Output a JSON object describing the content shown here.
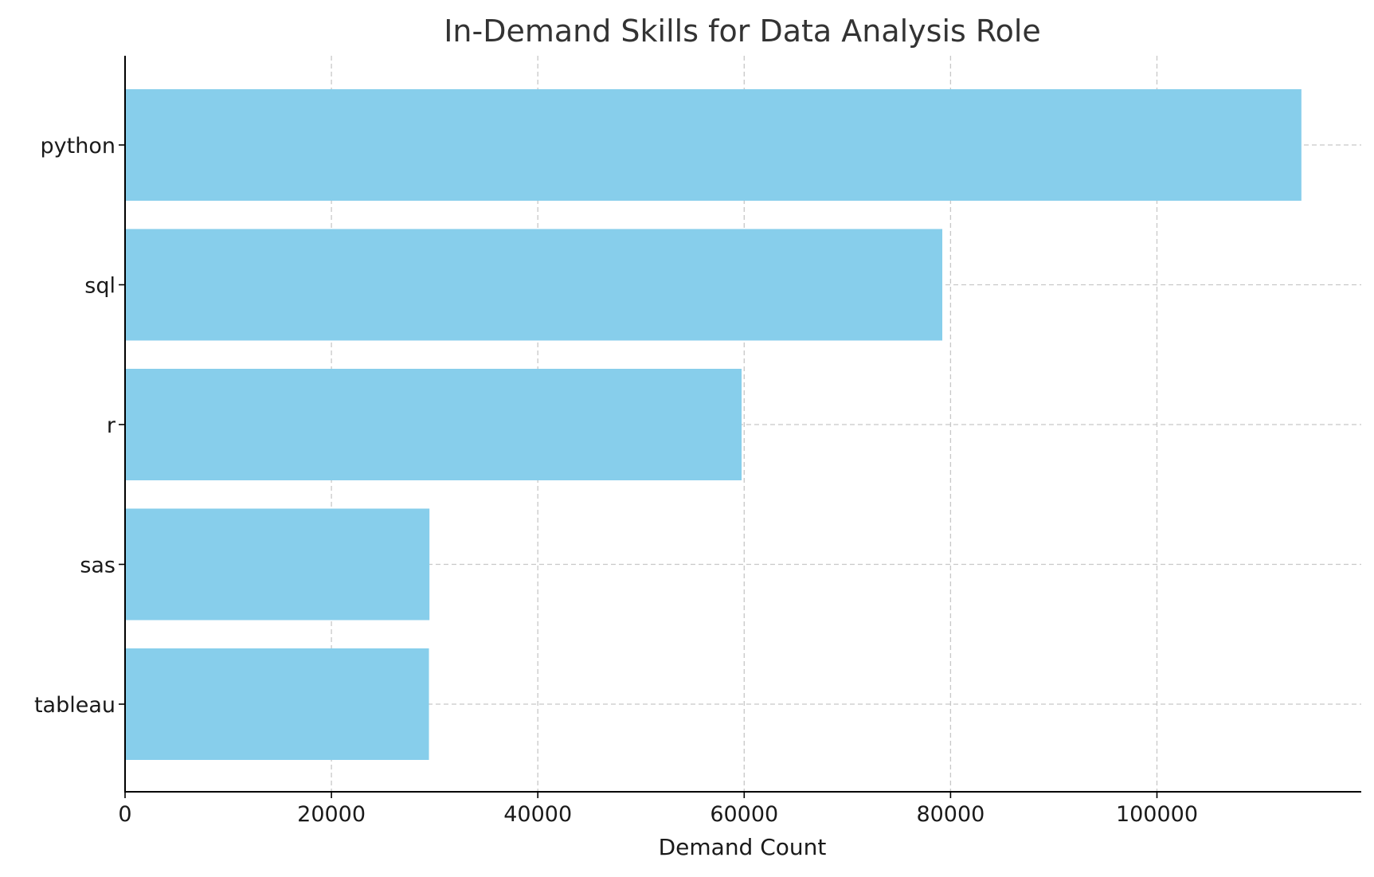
{
  "chart_data": {
    "type": "bar",
    "orientation": "horizontal",
    "title": "In-Demand Skills for Data Analysis Role",
    "xlabel": "Demand Count",
    "ylabel": "",
    "categories": [
      "python",
      "sql",
      "r",
      "sas",
      "tableau"
    ],
    "values": [
      114000,
      79200,
      59750,
      29500,
      29450
    ],
    "xlim": [
      0,
      119800
    ],
    "xticks": [
      0,
      20000,
      40000,
      60000,
      80000,
      100000
    ],
    "xtick_labels": [
      "0",
      "20000",
      "40000",
      "60000",
      "80000",
      "100000"
    ],
    "grid": true,
    "bar_color": "#87ceeb"
  }
}
